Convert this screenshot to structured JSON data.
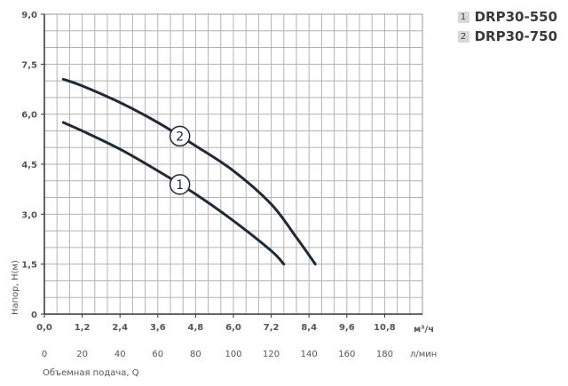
{
  "chart_data": {
    "type": "line",
    "xlabel": "Объемная подача, Q",
    "ylabel": "Напор, Н(м)",
    "x_unit_primary": "м³/ч",
    "x_unit_secondary": "л/мин",
    "x_ticks_primary": [
      "0,0",
      "1,2",
      "2,4",
      "3,6",
      "4,8",
      "6,0",
      "7,2",
      "8,4",
      "9,6",
      "10,8"
    ],
    "x_ticks_secondary": [
      "0",
      "20",
      "40",
      "60",
      "80",
      "100",
      "120",
      "140",
      "160",
      "180"
    ],
    "y_ticks": [
      "0",
      "1,5",
      "3,0",
      "4,5",
      "6,0",
      "7,5",
      "9,0"
    ],
    "xlim": [
      0,
      12.0
    ],
    "ylim": [
      0,
      9.0
    ],
    "grid": true,
    "legend_position": "top-right",
    "series": [
      {
        "name": "DRP30-550",
        "label": "1",
        "x": [
          0.6,
          1.2,
          2.4,
          3.6,
          4.8,
          6.0,
          7.2,
          7.6
        ],
        "y": [
          5.75,
          5.5,
          4.95,
          4.3,
          3.6,
          2.8,
          1.9,
          1.5
        ]
      },
      {
        "name": "DRP30-750",
        "label": "2",
        "x": [
          0.6,
          1.2,
          2.4,
          3.6,
          4.8,
          6.0,
          7.2,
          8.0,
          8.6
        ],
        "y": [
          7.05,
          6.85,
          6.35,
          5.75,
          5.05,
          4.3,
          3.3,
          2.3,
          1.5
        ]
      }
    ],
    "curve_label_positions_x": [
      4.3,
      4.3
    ],
    "legend": [
      {
        "badge": "1",
        "name": "DRP30-550"
      },
      {
        "badge": "2",
        "name": "DRP30-750"
      }
    ]
  }
}
